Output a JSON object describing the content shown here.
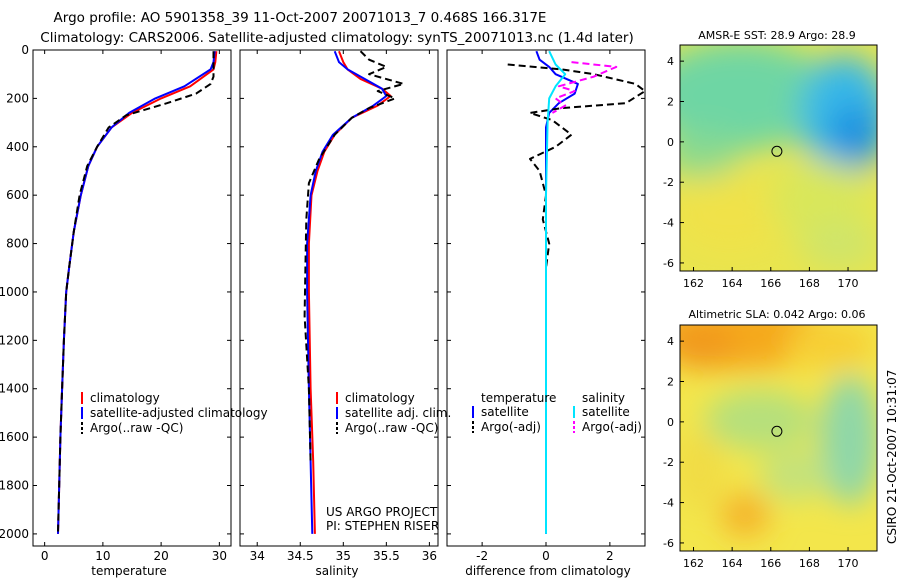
{
  "header": {
    "line1": "Argo profile: AO 5901358_39 11-Oct-2007 20071013_7 0.468S 166.317E",
    "line2": "Climatology: CARS2006. Satellite-adjusted climatology: synTS_20071013.nc (1.4d later)"
  },
  "colors": {
    "red": "#ff0000",
    "blue": "#0000ff",
    "black": "#000000",
    "cyan": "#00e5ff",
    "magenta": "#ff00ff"
  },
  "chart_data": [
    {
      "type": "line",
      "name": "temperature-profile",
      "xlabel": "temperature",
      "xlim": [
        -2,
        32
      ],
      "ylim": [
        0,
        2050
      ],
      "xticks": [
        0,
        10,
        20,
        30
      ],
      "yticks": [
        0,
        200,
        400,
        600,
        800,
        1000,
        1200,
        1400,
        1600,
        1800,
        2000
      ],
      "legend": [
        "climatology",
        "satellite-adjusted climatology",
        "Argo(..raw -QC)"
      ],
      "series": [
        {
          "name": "climatology",
          "color": "red",
          "style": "solid",
          "points": [
            [
              29.5,
              5
            ],
            [
              29.3,
              50
            ],
            [
              29,
              80
            ],
            [
              25,
              150
            ],
            [
              20,
              200
            ],
            [
              15,
              260
            ],
            [
              11.5,
              320
            ],
            [
              9,
              400
            ],
            [
              7.5,
              480
            ],
            [
              6.2,
              600
            ],
            [
              5,
              750
            ],
            [
              4.2,
              900
            ],
            [
              3.7,
              1000
            ],
            [
              3.3,
              1200
            ],
            [
              3.0,
              1400
            ],
            [
              2.7,
              1600
            ],
            [
              2.5,
              1800
            ],
            [
              2.3,
              2000
            ]
          ]
        },
        {
          "name": "satellite-adjusted climatology",
          "color": "blue",
          "style": "solid",
          "points": [
            [
              29.2,
              5
            ],
            [
              29,
              50
            ],
            [
              28.5,
              80
            ],
            [
              24,
              150
            ],
            [
              19,
              200
            ],
            [
              14.5,
              260
            ],
            [
              11.5,
              320
            ],
            [
              9,
              400
            ],
            [
              7.5,
              480
            ],
            [
              6.2,
              600
            ],
            [
              5,
              750
            ],
            [
              4.2,
              900
            ],
            [
              3.7,
              1000
            ],
            [
              3.3,
              1200
            ],
            [
              3.0,
              1400
            ],
            [
              2.7,
              1600
            ],
            [
              2.5,
              1800
            ],
            [
              2.3,
              2000
            ]
          ]
        },
        {
          "name": "Argo(..raw -QC)",
          "color": "black",
          "style": "dashed",
          "points": [
            [
              29,
              5
            ],
            [
              29,
              70
            ],
            [
              29,
              110
            ],
            [
              28.5,
              140
            ],
            [
              26,
              180
            ],
            [
              21,
              220
            ],
            [
              14,
              270
            ],
            [
              11,
              320
            ],
            [
              9,
              400
            ],
            [
              7.3,
              480
            ],
            [
              6,
              600
            ],
            [
              5,
              750
            ],
            [
              4.2,
              900
            ],
            [
              3.7,
              1000
            ],
            [
              3.3,
              1200
            ],
            [
              3.0,
              1400
            ],
            [
              2.7,
              1600
            ],
            [
              2.5,
              1800
            ],
            [
              2.3,
              1990
            ]
          ]
        }
      ]
    },
    {
      "type": "line",
      "name": "salinity-profile",
      "xlabel": "salinity",
      "xlim": [
        33.8,
        36.1
      ],
      "ylim": [
        0,
        2050
      ],
      "xticks": [
        34,
        34.5,
        35,
        35.5,
        36
      ],
      "legend": [
        "climatology",
        "satellite adj. clim.",
        "Argo(..raw -QC)"
      ],
      "annotation": [
        "US ARGO PROJECT",
        "PI: STEPHEN RISER"
      ],
      "series": [
        {
          "name": "climatology",
          "color": "red",
          "style": "solid",
          "points": [
            [
              34.95,
              5
            ],
            [
              35.0,
              50
            ],
            [
              35.05,
              80
            ],
            [
              35.2,
              120
            ],
            [
              35.45,
              160
            ],
            [
              35.55,
              190
            ],
            [
              35.4,
              230
            ],
            [
              35.1,
              280
            ],
            [
              34.9,
              350
            ],
            [
              34.78,
              420
            ],
            [
              34.7,
              500
            ],
            [
              34.63,
              600
            ],
            [
              34.6,
              800
            ],
            [
              34.6,
              1000
            ],
            [
              34.62,
              1400
            ],
            [
              34.65,
              1700
            ],
            [
              34.67,
              2000
            ]
          ]
        },
        {
          "name": "satellite adj. clim.",
          "color": "blue",
          "style": "solid",
          "points": [
            [
              34.9,
              5
            ],
            [
              34.95,
              50
            ],
            [
              35.05,
              80
            ],
            [
              35.25,
              120
            ],
            [
              35.45,
              160
            ],
            [
              35.5,
              190
            ],
            [
              35.35,
              230
            ],
            [
              35.1,
              280
            ],
            [
              34.88,
              350
            ],
            [
              34.76,
              420
            ],
            [
              34.68,
              500
            ],
            [
              34.62,
              600
            ],
            [
              34.58,
              800
            ],
            [
              34.58,
              1000
            ],
            [
              34.6,
              1400
            ],
            [
              34.62,
              1700
            ],
            [
              34.64,
              2000
            ]
          ]
        },
        {
          "name": "Argo(..raw -QC)",
          "color": "black",
          "style": "dashed",
          "points": [
            [
              35.2,
              5
            ],
            [
              35.3,
              40
            ],
            [
              35.5,
              70
            ],
            [
              35.3,
              100
            ],
            [
              35.7,
              140
            ],
            [
              35.4,
              170
            ],
            [
              35.6,
              200
            ],
            [
              35.3,
              240
            ],
            [
              35.1,
              280
            ],
            [
              34.9,
              350
            ],
            [
              34.72,
              450
            ],
            [
              34.6,
              550
            ],
            [
              34.57,
              700
            ],
            [
              34.56,
              900
            ],
            [
              34.55,
              1100
            ],
            [
              34.6,
              1400
            ],
            [
              34.62,
              1700
            ]
          ]
        }
      ]
    },
    {
      "type": "line",
      "name": "difference-profile",
      "xlabel": "difference from climatology",
      "xlim": [
        -3.1,
        3.1
      ],
      "ylim": [
        0,
        2050
      ],
      "xticks": [
        -2,
        0,
        2
      ],
      "legend": {
        "temperature": [
          "temperature",
          "satellite",
          "Argo(-adj)"
        ],
        "salinity": [
          "salinity",
          "satellite",
          "Argo(-adj)"
        ]
      },
      "series": [
        {
          "name": "temperature satellite",
          "color": "blue",
          "style": "solid",
          "points": [
            [
              -0.3,
              5
            ],
            [
              -0.2,
              40
            ],
            [
              0.1,
              70
            ],
            [
              0.3,
              100
            ],
            [
              1.0,
              140
            ],
            [
              0.9,
              180
            ],
            [
              0.4,
              220
            ],
            [
              0.1,
              260
            ],
            [
              0.0,
              320
            ],
            [
              0,
              600
            ],
            [
              0,
              1000
            ],
            [
              0,
              1400
            ],
            [
              0,
              2000
            ]
          ]
        },
        {
          "name": "temperature Argo(-adj)",
          "color": "black",
          "style": "dashed",
          "points": [
            [
              -1.2,
              60
            ],
            [
              0.5,
              80
            ],
            [
              1.5,
              100
            ],
            [
              2.8,
              140
            ],
            [
              3.1,
              170
            ],
            [
              2.5,
              220
            ],
            [
              0.5,
              240
            ],
            [
              -0.5,
              260
            ],
            [
              0.2,
              290
            ],
            [
              0.8,
              350
            ],
            [
              0.3,
              400
            ],
            [
              -0.5,
              450
            ],
            [
              -0.2,
              500
            ],
            [
              0.0,
              600
            ],
            [
              -0.1,
              700
            ],
            [
              0.1,
              800
            ],
            [
              0.0,
              900
            ],
            [
              0,
              1000
            ],
            [
              0,
              1400
            ]
          ]
        },
        {
          "name": "salinity satellite",
          "color": "cyan",
          "style": "solid",
          "points": [
            [
              0.1,
              5
            ],
            [
              0.3,
              60
            ],
            [
              0.6,
              100
            ],
            [
              0.3,
              150
            ],
            [
              0.1,
              200
            ],
            [
              0.05,
              300
            ],
            [
              0,
              600
            ],
            [
              0,
              1000
            ],
            [
              0,
              1400
            ],
            [
              0,
              2000
            ]
          ]
        },
        {
          "name": "salinity Argo(-adj)",
          "color": "magenta",
          "style": "dashed",
          "points": [
            [
              0.8,
              50
            ],
            [
              2.2,
              70
            ],
            [
              1.5,
              110
            ],
            [
              0.4,
              150
            ],
            [
              0.9,
              170
            ],
            [
              0.3,
              200
            ],
            [
              0.6,
              230
            ],
            [
              0.2,
              260
            ]
          ]
        }
      ]
    },
    {
      "type": "heatmap",
      "name": "amsre-sst-map",
      "title": "AMSR-E SST: 28.9  Argo: 28.9",
      "xlim": [
        161.3,
        171.5
      ],
      "ylim": [
        -6.4,
        4.8
      ],
      "xticks": [
        162,
        164,
        166,
        168,
        170
      ],
      "yticks": [
        -6,
        -4,
        -2,
        0,
        2,
        4
      ],
      "argo_position": [
        166.317,
        -0.468
      ]
    },
    {
      "type": "heatmap",
      "name": "altimetric-sla-map",
      "title": "Altimetric SLA: 0.042  Argo: 0.06",
      "xlim": [
        161.3,
        171.5
      ],
      "ylim": [
        -6.4,
        4.8
      ],
      "xticks": [
        162,
        164,
        166,
        168,
        170
      ],
      "yticks": [
        -6,
        -4,
        -2,
        0,
        2,
        4
      ],
      "argo_position": [
        166.317,
        -0.468
      ]
    }
  ],
  "footer_stamp": "CSIRO 21-Oct-2007 10:31:07"
}
